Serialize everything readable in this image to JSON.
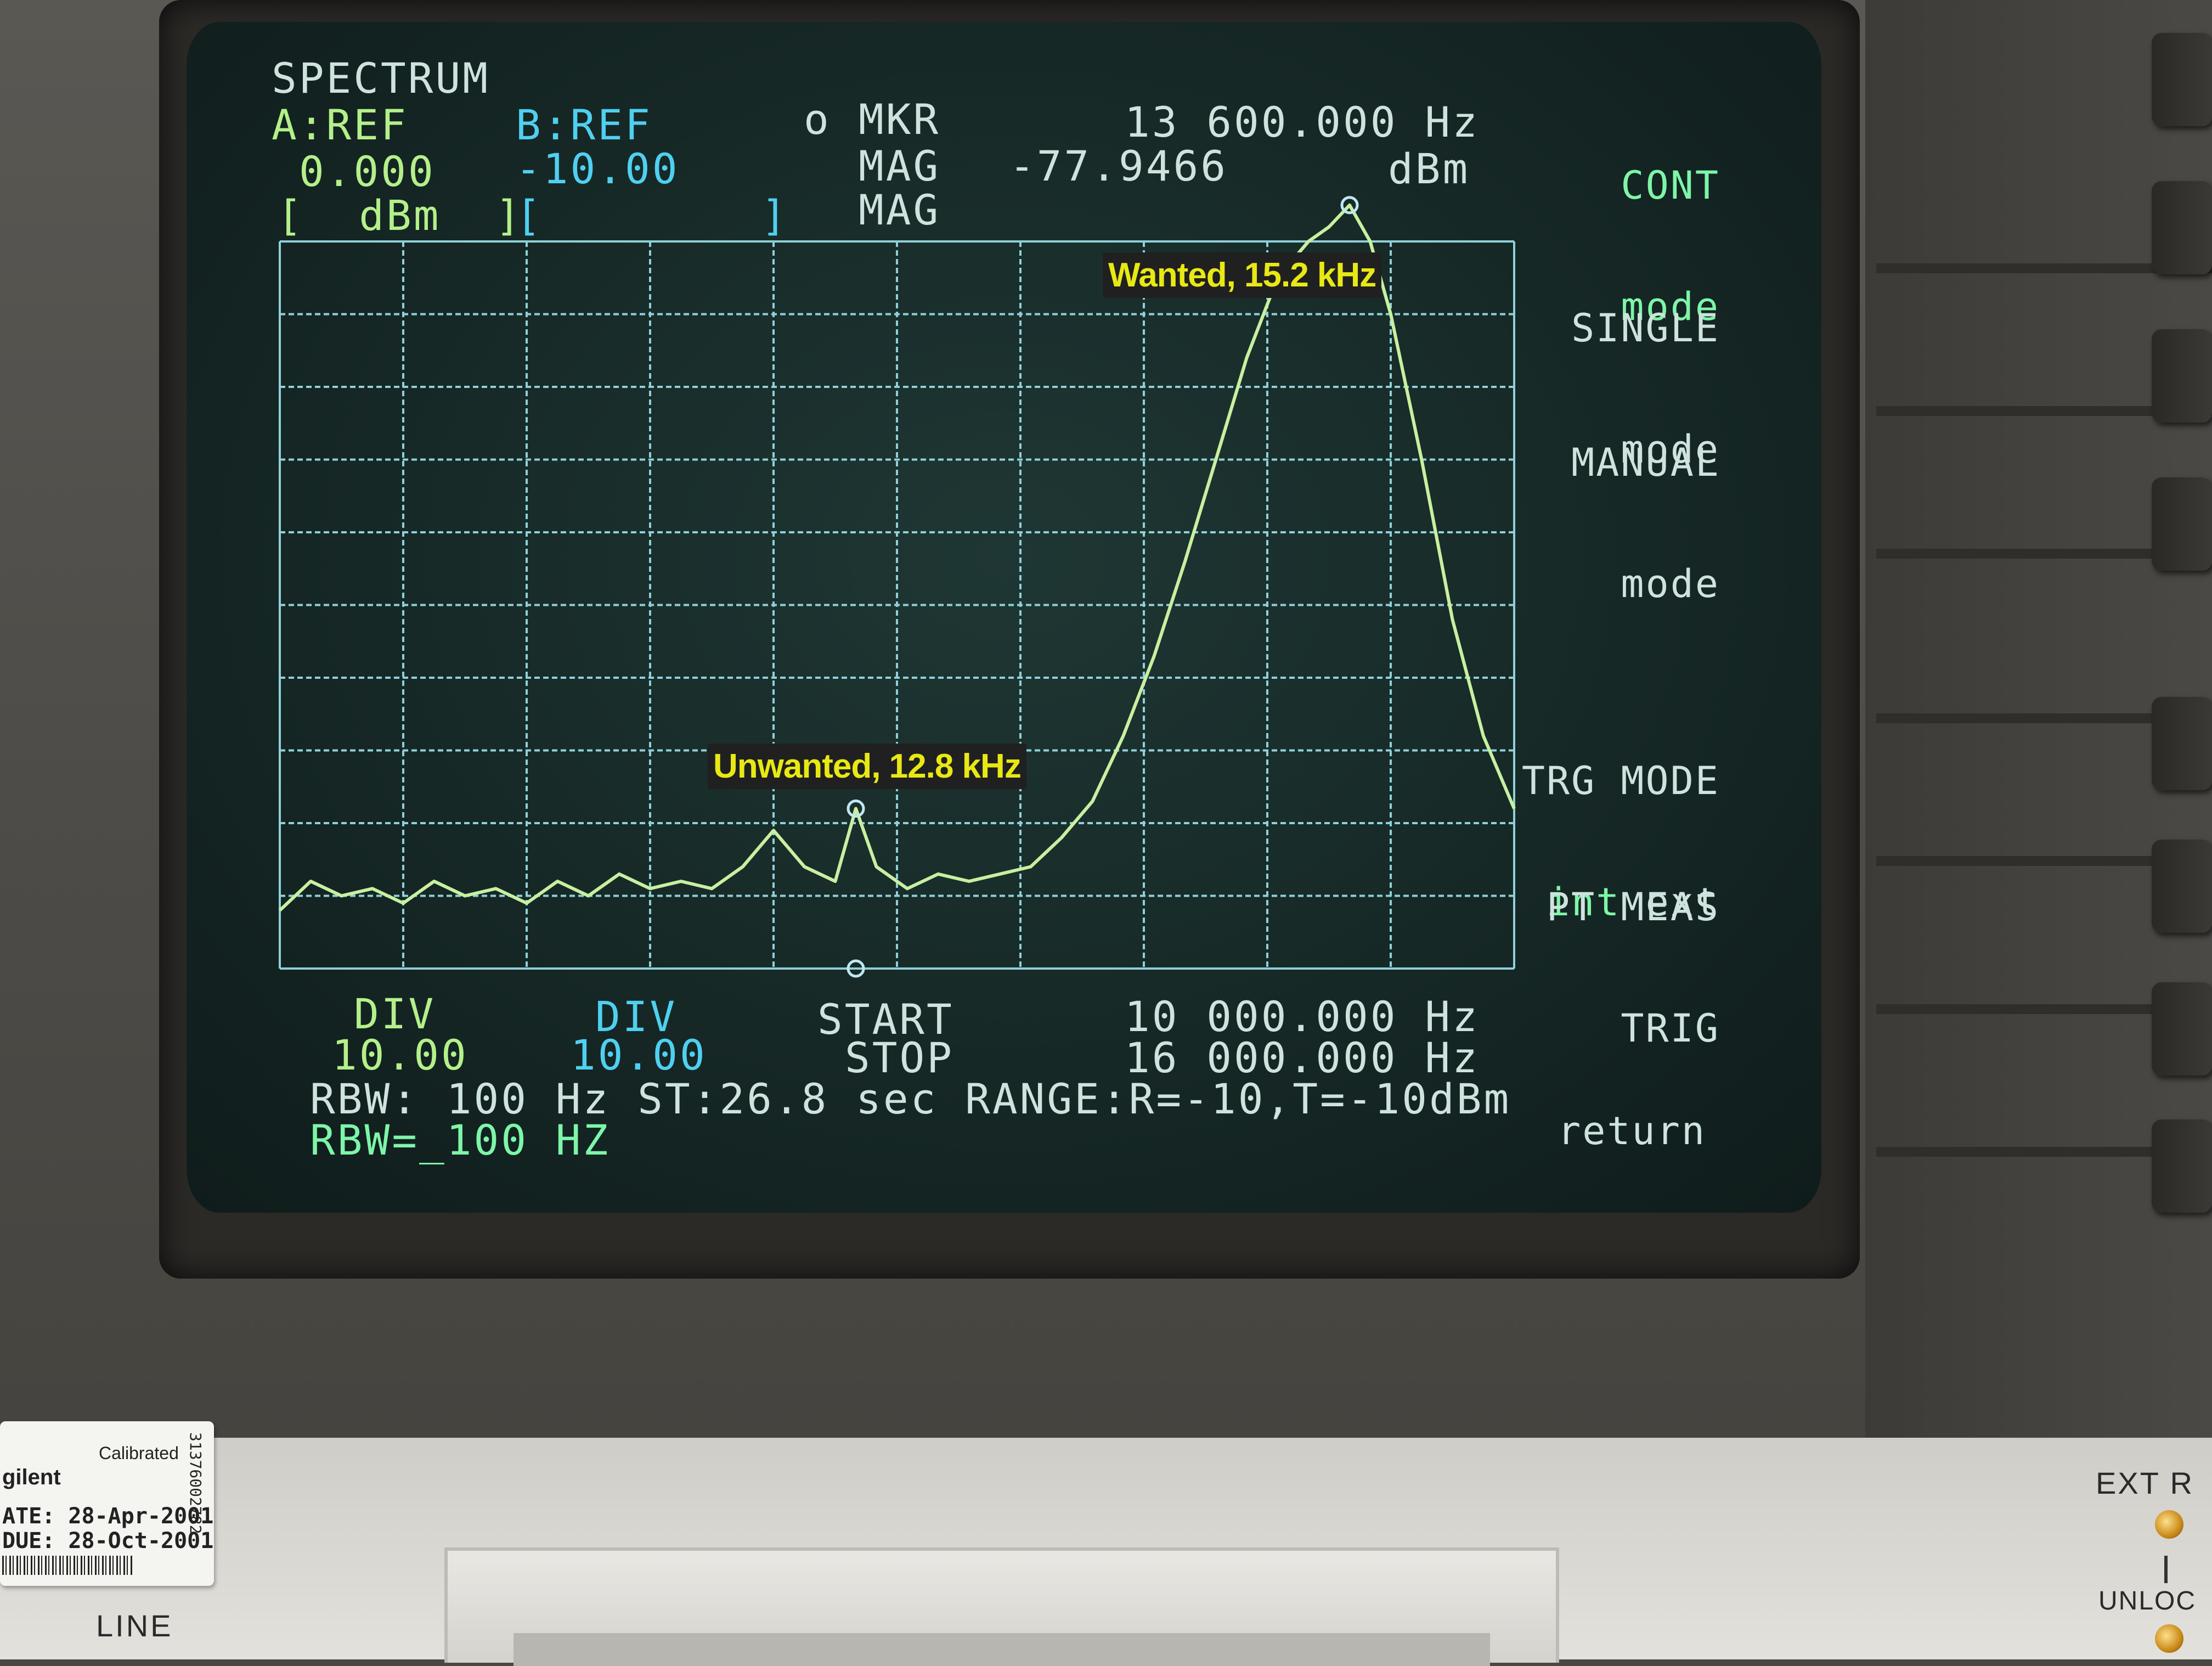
{
  "screen": {
    "title": "SPECTRUM",
    "trace_a": {
      "label": "A:REF",
      "value": "0.000",
      "unit": "[  dBm  ]"
    },
    "trace_b": {
      "label": "B:REF",
      "value": "-10.00",
      "unit": "[        ]"
    },
    "marker": {
      "symbol": "o",
      "label": "MKR",
      "mag_label": "MAG",
      "mag2_label": "MAG",
      "frequency": "13 600.000 Hz",
      "magnitude": "-77.9466",
      "mag_unit": "dBm"
    },
    "div_a": {
      "label": "DIV",
      "value": "10.00"
    },
    "div_b": {
      "label": "DIV",
      "value": "10.00"
    },
    "start": {
      "label": "START",
      "value": "10 000.000 Hz"
    },
    "stop": {
      "label": "STOP",
      "value": "16 000.000 Hz"
    },
    "status_line": "RBW: 100 Hz ST:26.8 sec RANGE:R=-10,T=-10dBm",
    "entry_line": "RBW=_100 HZ"
  },
  "softkeys": {
    "cont_mode": {
      "line1": "CONT",
      "line2": "mode"
    },
    "single_mode": {
      "line1": "SINGLE",
      "line2": "mode"
    },
    "manual_mode": {
      "line1": "MANUAL",
      "line2": "mode"
    },
    "trg_mode": {
      "line1": "TRG MODE",
      "opt_int": "int",
      "opt_ext": "ext"
    },
    "pt_meas": {
      "line1": "PT MEAS",
      "line2": "TRIG"
    },
    "return": "return"
  },
  "annotations": {
    "wanted": "Wanted, 15.2 kHz",
    "unwanted": "Unwanted, 12.8 kHz"
  },
  "sticker": {
    "brand": "gilent",
    "calibrated": "Calibrated",
    "date_line": "ATE: 28-Apr-2001",
    "due_line": "DUE: 28-Oct-2001",
    "serial": "31376002782"
  },
  "panel": {
    "line_label": "LINE",
    "ext_label": "EXT R",
    "unlock_label": "UNLOC"
  },
  "colors": {
    "trace": "#c8f0a0",
    "grid": "#8fd0d8",
    "screen_bg": "#162826",
    "annotation_bg": "#202020",
    "annotation_text": "#e8e814"
  },
  "chart_data": {
    "type": "line",
    "x_unit": "Hz",
    "xlim": [
      10000,
      16000
    ],
    "y_unit": "dB",
    "ylim": [
      -100,
      0
    ],
    "grid": true,
    "grid_divisions": {
      "x": 10,
      "y": 10
    },
    "series": [
      {
        "x": [
          10000,
          10150,
          10300,
          10450,
          10600,
          10750,
          10900,
          11050,
          11200,
          11350,
          11500,
          11650,
          11800,
          11950,
          12100,
          12250,
          12400,
          12550,
          12700,
          12800,
          12900,
          13050,
          13200,
          13350,
          13500,
          13650,
          13800,
          13950,
          14100,
          14250,
          14400,
          14550,
          14700,
          14850,
          15000,
          15100,
          15200,
          15300,
          15400,
          15550,
          15700,
          15850,
          16000
        ],
        "y": [
          -92,
          -88,
          -90,
          -89,
          -91,
          -88,
          -90,
          -89,
          -91,
          -88,
          -90,
          -87,
          -89,
          -88,
          -89,
          -86,
          -81,
          -86,
          -88,
          -78,
          -86,
          -89,
          -87,
          -88,
          -87,
          -86,
          -82,
          -77,
          -68,
          -57,
          -44,
          -30,
          -16,
          -5,
          0,
          2,
          5,
          0,
          -10,
          -30,
          -52,
          -68,
          -78
        ]
      }
    ],
    "markers": [
      {
        "x": 12800,
        "y": -78,
        "label": "Unwanted, 12.8 kHz"
      },
      {
        "x": 15200,
        "y": 5,
        "label": "Wanted, 15.2 kHz"
      }
    ]
  }
}
